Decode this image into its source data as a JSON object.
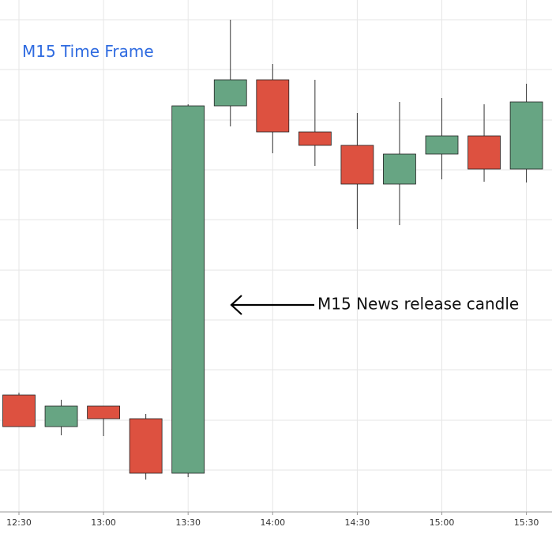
{
  "chart_data": {
    "type": "candlestick",
    "title": "M15 Time Frame",
    "annotation": "M15 News release candle",
    "x": [
      "12:30",
      null,
      "13:00",
      null,
      "13:30",
      null,
      "14:00",
      null,
      "14:30",
      null,
      "15:00",
      null,
      "15:30"
    ],
    "open": [
      150,
      110,
      136,
      120,
      51,
      516,
      549,
      483,
      466,
      417,
      455,
      478,
      436
    ],
    "high": [
      153,
      144,
      136,
      126,
      518,
      625,
      569,
      549,
      507,
      521,
      526,
      518,
      544
    ],
    "low": [
      110,
      99,
      98,
      43,
      46,
      490,
      456,
      440,
      360,
      365,
      423,
      420,
      419
    ],
    "close": [
      110,
      136,
      120,
      51,
      516,
      549,
      483,
      466,
      417,
      455,
      478,
      436,
      521
    ],
    "ylim": [
      0,
      650
    ],
    "up_color": "#67a583",
    "down_color": "#dd5140",
    "title_color": "#2f6be0"
  }
}
